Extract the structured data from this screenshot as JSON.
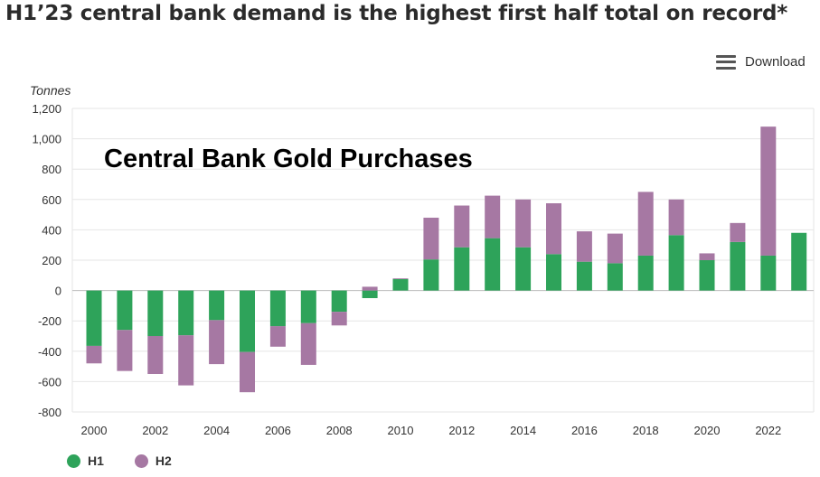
{
  "page": {
    "title": "H1’23 central bank demand is the highest first half total on record*",
    "download_label": "Download",
    "overlay_title": "Central Bank Gold Purchases"
  },
  "colors": {
    "h1": "#2ea35a",
    "h2": "#a678a3",
    "grid": "#e6e6e6",
    "zero": "#bdbdbd"
  },
  "chart_data": {
    "type": "bar",
    "stacked": true,
    "title": "Central Bank Gold Purchases",
    "ylabel": "Tonnes",
    "xlabel": "",
    "ylim": [
      -800,
      1200
    ],
    "yticks": [
      1200,
      1000,
      800,
      600,
      400,
      200,
      0,
      -200,
      -400,
      -600,
      -800
    ],
    "ytick_labels": [
      "1,200",
      "1,000",
      "800",
      "600",
      "400",
      "200",
      "0",
      "-200",
      "-400",
      "-600",
      "-800"
    ],
    "categories": [
      "2000",
      "2001",
      "2002",
      "2003",
      "2004",
      "2005",
      "2006",
      "2007",
      "2008",
      "2009",
      "2010",
      "2011",
      "2012",
      "2013",
      "2014",
      "2015",
      "2016",
      "2017",
      "2018",
      "2019",
      "2020",
      "2021",
      "2022",
      "2023"
    ],
    "xtick_labels": [
      "2000",
      "2002",
      "2004",
      "2006",
      "2008",
      "2010",
      "2012",
      "2014",
      "2016",
      "2018",
      "2020",
      "2022"
    ],
    "series": [
      {
        "name": "H1",
        "values": [
          -365,
          -260,
          -300,
          -295,
          -195,
          -405,
          -235,
          -215,
          -140,
          -50,
          75,
          205,
          285,
          345,
          285,
          240,
          190,
          180,
          230,
          365,
          200,
          320,
          230,
          380
        ]
      },
      {
        "name": "H2",
        "values": [
          -115,
          -270,
          -250,
          -330,
          -290,
          -265,
          -135,
          -275,
          -90,
          25,
          5,
          275,
          275,
          280,
          315,
          335,
          200,
          195,
          420,
          235,
          45,
          125,
          850,
          0
        ]
      }
    ],
    "legend": [
      "H1",
      "H2"
    ],
    "legend_position": "bottom-left",
    "grid": true
  }
}
